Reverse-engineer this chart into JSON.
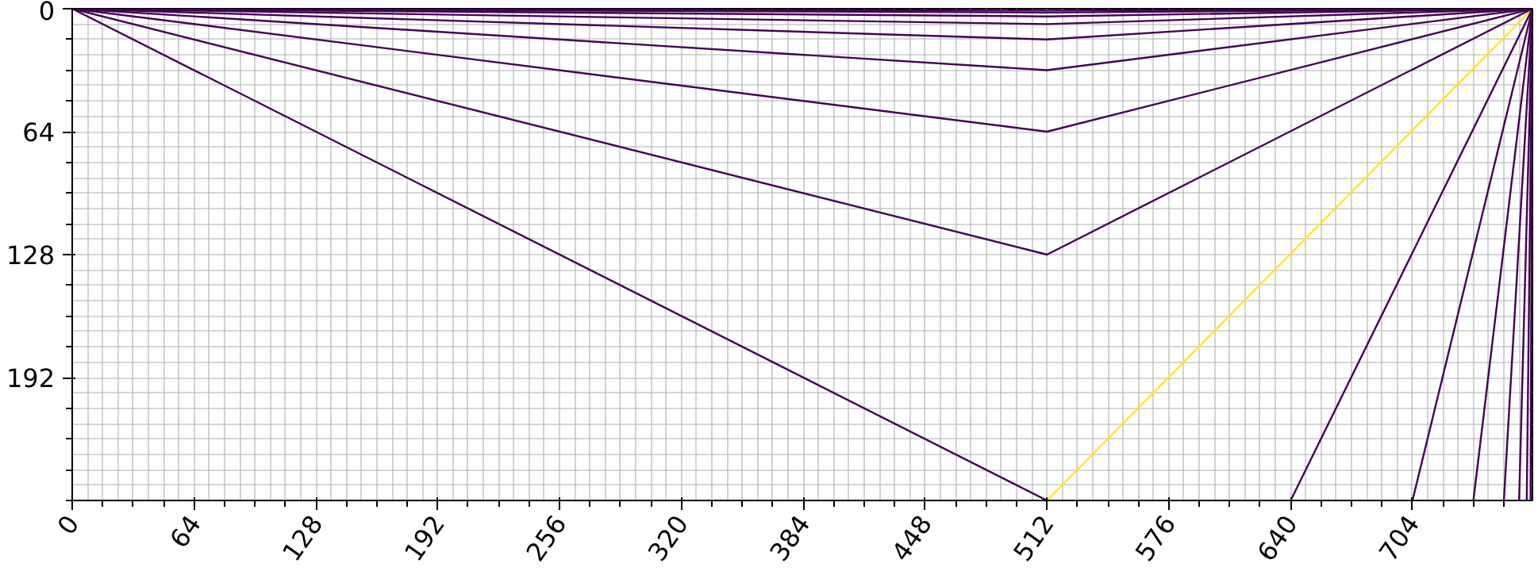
{
  "chart_data": {
    "type": "line",
    "xlim": [
      0,
      767
    ],
    "ylim": [
      256,
      0
    ],
    "xticks": [
      0,
      64,
      128,
      192,
      256,
      320,
      384,
      448,
      512,
      576,
      640,
      704
    ],
    "yticks": [
      0,
      64,
      128,
      192
    ],
    "grid": true,
    "series": [
      {
        "color": "#440154",
        "x": [
          0,
          512
        ],
        "values": [
          0,
          256
        ]
      },
      {
        "color": "#fde725",
        "x": [
          512,
          767
        ],
        "values": [
          256,
          0
        ]
      },
      {
        "color": "#440154",
        "x": [
          0,
          512,
          767
        ],
        "values": [
          0,
          128,
          0
        ]
      },
      {
        "color": "#440154",
        "x": [
          0,
          512,
          767
        ],
        "values": [
          0,
          64,
          0
        ]
      },
      {
        "color": "#440154",
        "x": [
          0,
          512,
          767
        ],
        "values": [
          0,
          32,
          0
        ]
      },
      {
        "color": "#440154",
        "x": [
          0,
          512,
          767
        ],
        "values": [
          0,
          16,
          0
        ]
      },
      {
        "color": "#440154",
        "x": [
          0,
          512,
          767
        ],
        "values": [
          0,
          8,
          0
        ]
      },
      {
        "color": "#440154",
        "x": [
          0,
          512,
          767
        ],
        "values": [
          0,
          4,
          0
        ]
      },
      {
        "color": "#440154",
        "x": [
          0,
          512,
          767
        ],
        "values": [
          0,
          2,
          0
        ]
      },
      {
        "color": "#440154",
        "x": [
          0,
          512,
          767
        ],
        "values": [
          0,
          1,
          0
        ]
      },
      {
        "color": "#440154",
        "x": [
          640,
          767
        ],
        "values": [
          256,
          0
        ]
      },
      {
        "color": "#440154",
        "x": [
          704,
          767
        ],
        "values": [
          256,
          0
        ]
      },
      {
        "color": "#440154",
        "x": [
          736,
          767
        ],
        "values": [
          256,
          0
        ]
      },
      {
        "color": "#440154",
        "x": [
          752,
          767
        ],
        "values": [
          256,
          0
        ]
      },
      {
        "color": "#440154",
        "x": [
          760,
          767
        ],
        "values": [
          256,
          0
        ]
      },
      {
        "color": "#440154",
        "x": [
          764,
          767
        ],
        "values": [
          256,
          0
        ]
      },
      {
        "color": "#440154",
        "x": [
          766,
          767
        ],
        "values": [
          256,
          0
        ]
      }
    ]
  }
}
